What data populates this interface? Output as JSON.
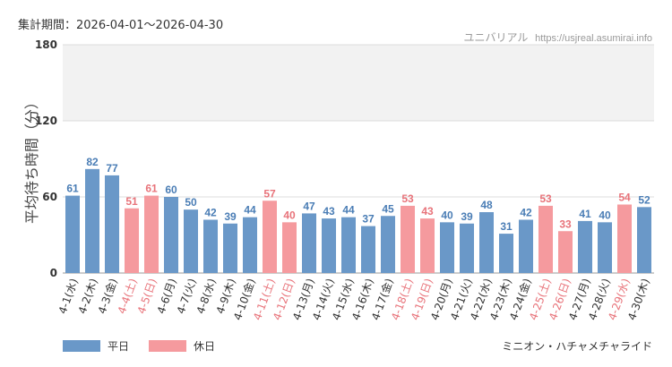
{
  "header": {
    "period": "集計期間：2026-04-01～2026-04-30",
    "site_name": "ユニバリアル",
    "site_url": "https://usjreal.asumirai.info"
  },
  "legend": {
    "weekday_label": "平日",
    "holiday_label": "休日"
  },
  "attraction": "ミニオン・ハチャメチャライド",
  "colors": {
    "weekday": "#6a98c8",
    "holiday": "#f59a9e",
    "weekday_text": "#4a7db5",
    "holiday_text": "#e8737a"
  },
  "chart_data": {
    "type": "bar",
    "ylabel": "平均待ち時間（分）",
    "ylim": [
      0,
      180
    ],
    "yticks": [
      0,
      60,
      120,
      180
    ],
    "shaded_band": [
      120,
      180
    ],
    "grid": true,
    "legend_position": "bottom-left",
    "categories": [
      "4-1(水)",
      "4-2(木)",
      "4-3(金)",
      "4-4(土)",
      "4-5(日)",
      "4-6(月)",
      "4-7(火)",
      "4-8(水)",
      "4-9(木)",
      "4-10(金)",
      "4-11(土)",
      "4-12(日)",
      "4-13(月)",
      "4-14(火)",
      "4-15(水)",
      "4-16(木)",
      "4-17(金)",
      "4-18(土)",
      "4-19(日)",
      "4-20(月)",
      "4-21(火)",
      "4-22(水)",
      "4-23(木)",
      "4-24(金)",
      "4-25(土)",
      "4-26(日)",
      "4-27(月)",
      "4-28(火)",
      "4-29(水)",
      "4-30(木)"
    ],
    "values": [
      61,
      82,
      77,
      51,
      61,
      60,
      50,
      42,
      39,
      44,
      57,
      40,
      47,
      43,
      44,
      37,
      45,
      53,
      43,
      40,
      39,
      48,
      31,
      42,
      53,
      33,
      41,
      40,
      54,
      52
    ],
    "day_type": [
      "平日",
      "平日",
      "平日",
      "休日",
      "休日",
      "平日",
      "平日",
      "平日",
      "平日",
      "平日",
      "休日",
      "休日",
      "平日",
      "平日",
      "平日",
      "平日",
      "平日",
      "休日",
      "休日",
      "平日",
      "平日",
      "平日",
      "平日",
      "平日",
      "休日",
      "休日",
      "平日",
      "平日",
      "休日",
      "平日"
    ]
  }
}
